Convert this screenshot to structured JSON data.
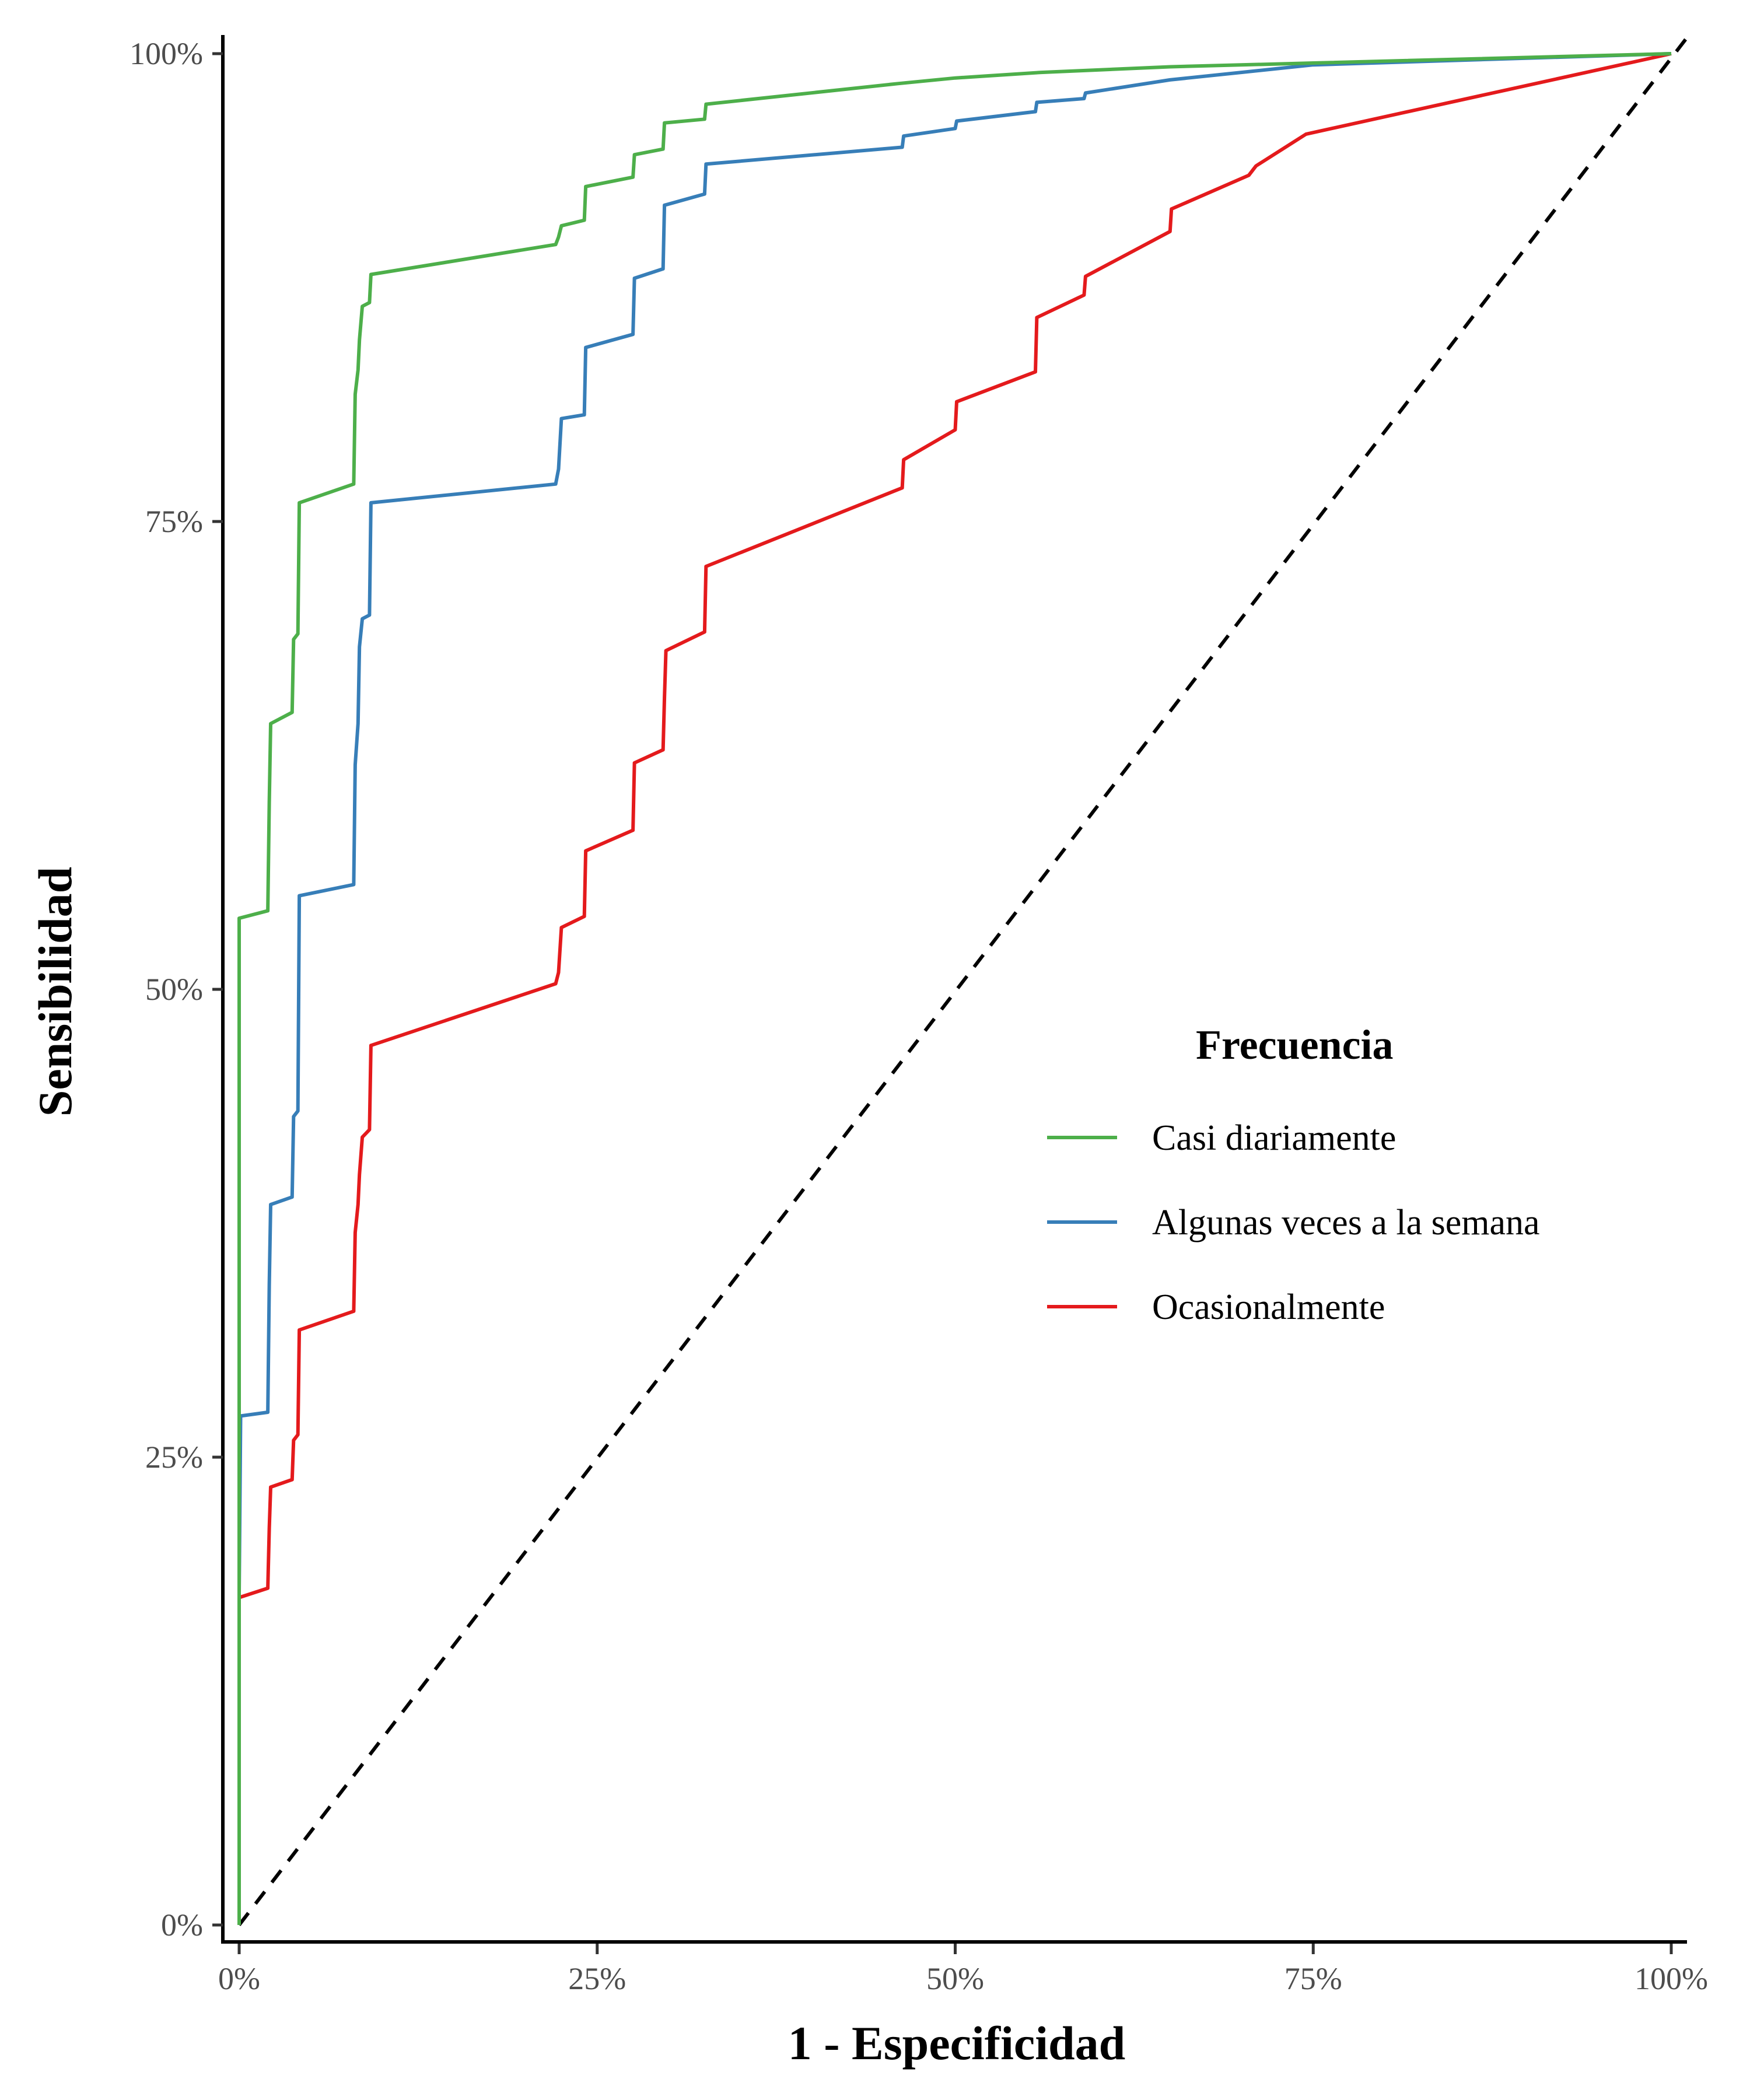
{
  "chart_data": {
    "type": "line",
    "xlabel": "1 - Especificidad",
    "ylabel": "Sensibilidad",
    "xlim": [
      0,
      1
    ],
    "ylim": [
      0,
      1
    ],
    "x_ticks": [
      {
        "value": 0,
        "label": "0%"
      },
      {
        "value": 0.25,
        "label": "25%"
      },
      {
        "value": 0.5,
        "label": "50%"
      },
      {
        "value": 0.75,
        "label": "75%"
      },
      {
        "value": 1,
        "label": "100%"
      }
    ],
    "y_ticks": [
      {
        "value": 0,
        "label": "0%"
      },
      {
        "value": 0.25,
        "label": "25%"
      },
      {
        "value": 0.5,
        "label": "50%"
      },
      {
        "value": 0.75,
        "label": "75%"
      },
      {
        "value": 1,
        "label": "100%"
      }
    ],
    "grid": false,
    "reference_line": {
      "style": "dashed",
      "color": "#000000",
      "from": [
        0,
        0
      ],
      "to": [
        1,
        1
      ]
    },
    "legend": {
      "title": "Frecuencia",
      "placement": "right-center"
    },
    "series": [
      {
        "name": "Casi diariamente",
        "color": "#4DAF4A",
        "points": [
          [
            0,
            0
          ],
          [
            0,
            0.538
          ],
          [
            0.02,
            0.542
          ],
          [
            0.021,
            0.6
          ],
          [
            0.022,
            0.642
          ],
          [
            0.037,
            0.648
          ],
          [
            0.038,
            0.687
          ],
          [
            0.041,
            0.69
          ],
          [
            0.042,
            0.76
          ],
          [
            0.08,
            0.77
          ],
          [
            0.081,
            0.818
          ],
          [
            0.083,
            0.831
          ],
          [
            0.084,
            0.847
          ],
          [
            0.086,
            0.865
          ],
          [
            0.091,
            0.867
          ],
          [
            0.092,
            0.882
          ],
          [
            0.221,
            0.898
          ],
          [
            0.223,
            0.902
          ],
          [
            0.225,
            0.908
          ],
          [
            0.241,
            0.911
          ],
          [
            0.242,
            0.929
          ],
          [
            0.275,
            0.934
          ],
          [
            0.276,
            0.946
          ],
          [
            0.296,
            0.949
          ],
          [
            0.297,
            0.963
          ],
          [
            0.325,
            0.965
          ],
          [
            0.326,
            0.973
          ],
          [
            0.46,
            0.984
          ],
          [
            0.5,
            0.987
          ],
          [
            0.56,
            0.99
          ],
          [
            0.65,
            0.993
          ],
          [
            0.75,
            0.995
          ],
          [
            1.0,
            1.0
          ]
        ]
      },
      {
        "name": "Algunas veces a la semana",
        "color": "#377EB8",
        "points": [
          [
            0,
            0
          ],
          [
            0,
            0.177
          ],
          [
            0.001,
            0.272
          ],
          [
            0.02,
            0.274
          ],
          [
            0.021,
            0.342
          ],
          [
            0.022,
            0.385
          ],
          [
            0.037,
            0.389
          ],
          [
            0.038,
            0.432
          ],
          [
            0.041,
            0.435
          ],
          [
            0.042,
            0.55
          ],
          [
            0.08,
            0.556
          ],
          [
            0.081,
            0.62
          ],
          [
            0.083,
            0.642
          ],
          [
            0.084,
            0.683
          ],
          [
            0.086,
            0.698
          ],
          [
            0.091,
            0.7
          ],
          [
            0.092,
            0.76
          ],
          [
            0.221,
            0.77
          ],
          [
            0.223,
            0.778
          ],
          [
            0.225,
            0.805
          ],
          [
            0.241,
            0.807
          ],
          [
            0.242,
            0.843
          ],
          [
            0.275,
            0.85
          ],
          [
            0.276,
            0.88
          ],
          [
            0.296,
            0.885
          ],
          [
            0.297,
            0.919
          ],
          [
            0.325,
            0.925
          ],
          [
            0.326,
            0.941
          ],
          [
            0.463,
            0.95
          ],
          [
            0.464,
            0.956
          ],
          [
            0.5,
            0.96
          ],
          [
            0.501,
            0.964
          ],
          [
            0.556,
            0.969
          ],
          [
            0.557,
            0.974
          ],
          [
            0.59,
            0.976
          ],
          [
            0.591,
            0.979
          ],
          [
            0.65,
            0.986
          ],
          [
            0.75,
            0.994
          ],
          [
            1.0,
            1.0
          ]
        ]
      },
      {
        "name": "Ocasionalmente",
        "color": "#E41A1C",
        "points": [
          [
            0,
            0
          ],
          [
            0,
            0.175
          ],
          [
            0.02,
            0.18
          ],
          [
            0.021,
            0.212
          ],
          [
            0.022,
            0.234
          ],
          [
            0.037,
            0.238
          ],
          [
            0.038,
            0.259
          ],
          [
            0.041,
            0.262
          ],
          [
            0.042,
            0.318
          ],
          [
            0.08,
            0.328
          ],
          [
            0.081,
            0.37
          ],
          [
            0.083,
            0.385
          ],
          [
            0.084,
            0.401
          ],
          [
            0.086,
            0.421
          ],
          [
            0.091,
            0.425
          ],
          [
            0.092,
            0.47
          ],
          [
            0.221,
            0.503
          ],
          [
            0.223,
            0.509
          ],
          [
            0.225,
            0.533
          ],
          [
            0.241,
            0.539
          ],
          [
            0.242,
            0.574
          ],
          [
            0.275,
            0.585
          ],
          [
            0.276,
            0.621
          ],
          [
            0.296,
            0.628
          ],
          [
            0.297,
            0.656
          ],
          [
            0.298,
            0.681
          ],
          [
            0.325,
            0.691
          ],
          [
            0.326,
            0.726
          ],
          [
            0.463,
            0.768
          ],
          [
            0.464,
            0.783
          ],
          [
            0.5,
            0.799
          ],
          [
            0.501,
            0.814
          ],
          [
            0.556,
            0.83
          ],
          [
            0.557,
            0.859
          ],
          [
            0.59,
            0.871
          ],
          [
            0.591,
            0.881
          ],
          [
            0.65,
            0.905
          ],
          [
            0.651,
            0.917
          ],
          [
            0.705,
            0.935
          ],
          [
            0.71,
            0.94
          ],
          [
            0.745,
            0.957
          ],
          [
            1.0,
            1.0
          ]
        ]
      }
    ]
  }
}
